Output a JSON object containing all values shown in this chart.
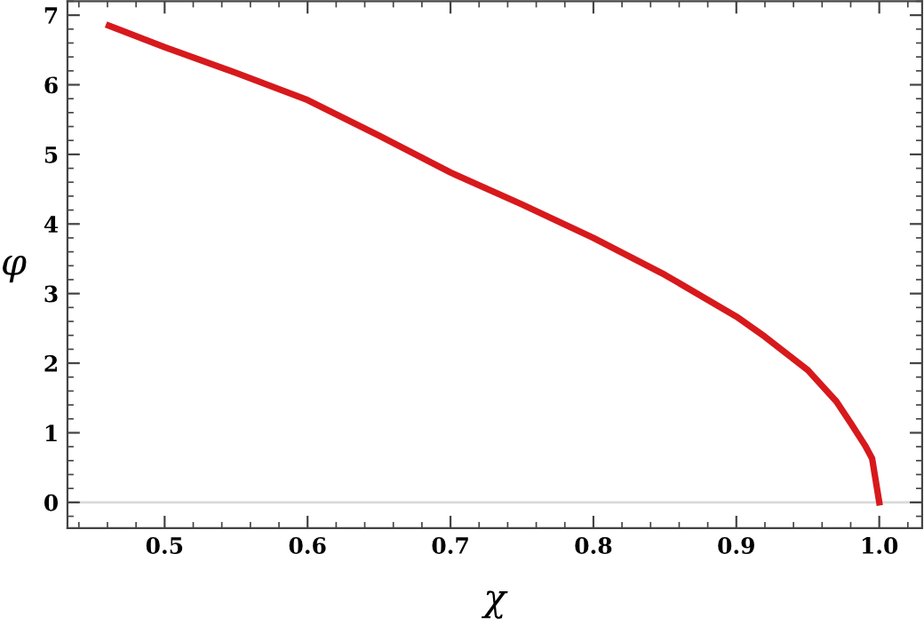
{
  "chart_data": {
    "type": "line",
    "xlabel": "χ",
    "ylabel": "φ",
    "series": [
      {
        "color": "#d7191c",
        "x": [
          0.461,
          0.5,
          0.55,
          0.6,
          0.65,
          0.7,
          0.75,
          0.8,
          0.85,
          0.9,
          0.92,
          0.95,
          0.97,
          0.98,
          0.99,
          0.995,
          1.0
        ],
        "values": [
          6.85,
          6.54,
          6.17,
          5.78,
          5.27,
          4.74,
          4.28,
          3.8,
          3.27,
          2.67,
          2.38,
          1.9,
          1.45,
          1.14,
          0.82,
          0.63,
          0
        ]
      }
    ],
    "xlim": [
      0.432,
      1.03
    ],
    "ylim": [
      -0.37,
      7.2
    ],
    "xticks": [
      0.5,
      0.6,
      0.7,
      0.8,
      0.9,
      {
        "value": 1.0,
        "label": "1.0"
      }
    ],
    "yticks": [
      0,
      1,
      2,
      3,
      4,
      5,
      6,
      7
    ],
    "ref_lines": [
      {
        "axis": "y",
        "value": 0,
        "color": "#d9d9d9"
      }
    ],
    "grid": false,
    "marker": "none",
    "line_style": "solid"
  }
}
